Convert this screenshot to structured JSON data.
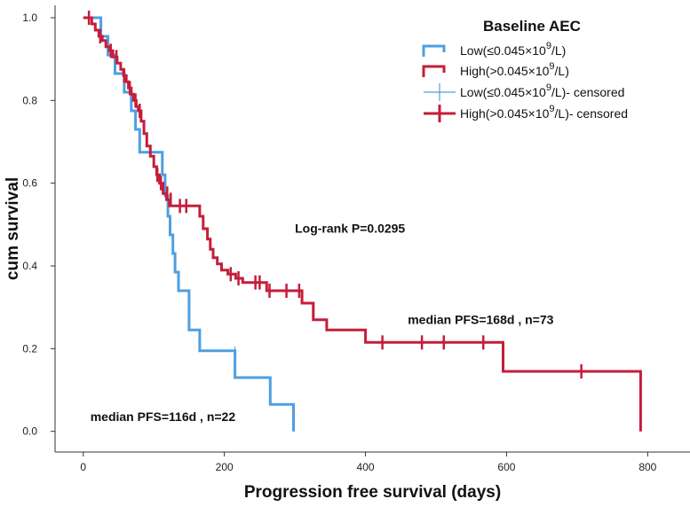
{
  "chart_data": {
    "type": "line",
    "subtype": "kaplan-meier step",
    "xlabel": "Progression free survival (days)",
    "ylabel": "cum survival",
    "xlim": [
      -40,
      860
    ],
    "ylim": [
      -0.05,
      1.03
    ],
    "xticks": [
      0,
      200,
      400,
      600,
      800
    ],
    "yticks": [
      0.0,
      0.2,
      0.4,
      0.6,
      0.8,
      1.0
    ],
    "legend": {
      "title": "Baseline AEC",
      "position": "top-right",
      "entries": [
        {
          "label_main": "Low(≤0.045×10",
          "label_sup": "9",
          "label_tail": "/L)",
          "kind": "line",
          "series": 0
        },
        {
          "label_main": "High(>0.045×10",
          "label_sup": "9",
          "label_tail": "/L)",
          "kind": "line",
          "series": 1
        },
        {
          "label_main": "Low(≤0.045×10",
          "label_sup": "9",
          "label_tail": "/L)- censored",
          "kind": "censor",
          "series": 0
        },
        {
          "label_main": "High(>0.045×10",
          "label_sup": "9",
          "label_tail": "/L)- censored",
          "kind": "censor",
          "series": 1
        }
      ]
    },
    "annotations": [
      {
        "text": "Log-rank P=0.0295",
        "x": 300,
        "y": 0.48
      },
      {
        "text": "median PFS=168d ,  n=73",
        "x": 460,
        "y": 0.26
      },
      {
        "text": "median PFS=116d ,  n=22",
        "x": 10,
        "y": 0.025
      }
    ],
    "series": [
      {
        "name": "Low(≤0.045×10^9/L)",
        "color": "#4e9fe0",
        "steps": [
          [
            0,
            1.0
          ],
          [
            25,
            0.955
          ],
          [
            35,
            0.91
          ],
          [
            45,
            0.865
          ],
          [
            58,
            0.82
          ],
          [
            68,
            0.775
          ],
          [
            74,
            0.73
          ],
          [
            80,
            0.675
          ],
          [
            112,
            0.62
          ],
          [
            116,
            0.57
          ],
          [
            120,
            0.52
          ],
          [
            123,
            0.475
          ],
          [
            127,
            0.43
          ],
          [
            130,
            0.385
          ],
          [
            135,
            0.34
          ],
          [
            150,
            0.245
          ],
          [
            165,
            0.195
          ],
          [
            215,
            0.13
          ],
          [
            265,
            0.065
          ],
          [
            298,
            0.0
          ]
        ],
        "end_x": 298,
        "censored": [
          [
            26,
            0.955
          ],
          [
            215,
            0.195
          ]
        ]
      },
      {
        "name": "High(>0.045×10^9/L)",
        "color": "#c41e3a",
        "steps": [
          [
            0,
            1.0
          ],
          [
            12,
            0.985
          ],
          [
            17,
            0.97
          ],
          [
            22,
            0.955
          ],
          [
            27,
            0.945
          ],
          [
            32,
            0.93
          ],
          [
            37,
            0.92
          ],
          [
            42,
            0.905
          ],
          [
            48,
            0.89
          ],
          [
            53,
            0.875
          ],
          [
            57,
            0.86
          ],
          [
            61,
            0.845
          ],
          [
            64,
            0.83
          ],
          [
            68,
            0.815
          ],
          [
            71,
            0.8
          ],
          [
            75,
            0.785
          ],
          [
            78,
            0.775
          ],
          [
            82,
            0.75
          ],
          [
            86,
            0.72
          ],
          [
            90,
            0.69
          ],
          [
            95,
            0.665
          ],
          [
            100,
            0.64
          ],
          [
            104,
            0.62
          ],
          [
            108,
            0.6
          ],
          [
            113,
            0.575
          ],
          [
            118,
            0.56
          ],
          [
            122,
            0.545
          ],
          [
            165,
            0.52
          ],
          [
            170,
            0.49
          ],
          [
            176,
            0.465
          ],
          [
            180,
            0.44
          ],
          [
            184,
            0.42
          ],
          [
            190,
            0.405
          ],
          [
            196,
            0.39
          ],
          [
            205,
            0.38
          ],
          [
            216,
            0.37
          ],
          [
            226,
            0.36
          ],
          [
            260,
            0.34
          ],
          [
            310,
            0.31
          ],
          [
            326,
            0.27
          ],
          [
            345,
            0.245
          ],
          [
            400,
            0.215
          ],
          [
            595,
            0.145
          ],
          [
            790,
            0.0
          ]
        ],
        "end_x": 790,
        "censored": [
          [
            8,
            1.0
          ],
          [
            24,
            0.955
          ],
          [
            39,
            0.92
          ],
          [
            47,
            0.905
          ],
          [
            58,
            0.86
          ],
          [
            66,
            0.83
          ],
          [
            74,
            0.8
          ],
          [
            80,
            0.775
          ],
          [
            105,
            0.62
          ],
          [
            110,
            0.6
          ],
          [
            119,
            0.575
          ],
          [
            124,
            0.56
          ],
          [
            137,
            0.545
          ],
          [
            146,
            0.545
          ],
          [
            209,
            0.38
          ],
          [
            220,
            0.37
          ],
          [
            244,
            0.36
          ],
          [
            250,
            0.36
          ],
          [
            264,
            0.34
          ],
          [
            288,
            0.34
          ],
          [
            306,
            0.34
          ],
          [
            424,
            0.215
          ],
          [
            480,
            0.215
          ],
          [
            511,
            0.215
          ],
          [
            567,
            0.215
          ],
          [
            706,
            0.145
          ]
        ]
      }
    ]
  }
}
